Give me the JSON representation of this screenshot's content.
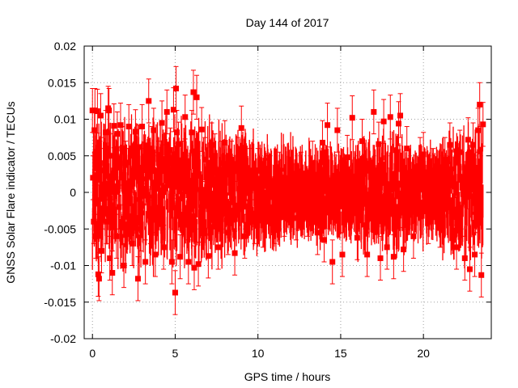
{
  "chart_data": {
    "type": "scatter",
    "title": "Day 144 of 2017",
    "xlabel": "GPS time / hours",
    "ylabel": "GNSS Solar Flare indicator / TECUs",
    "xlim": [
      -0.5,
      24.1
    ],
    "ylim": [
      -0.02,
      0.02
    ],
    "xticks": [
      0,
      5,
      10,
      15,
      20
    ],
    "xtick_labels": [
      "0",
      "5",
      "10",
      "15",
      "20"
    ],
    "yticks": [
      -0.02,
      -0.015,
      -0.01,
      -0.005,
      0,
      0.005,
      0.01,
      0.015,
      0.02
    ],
    "ytick_labels": [
      "-0.02",
      "-0.015",
      "-0.01",
      "-0.005",
      "0",
      "0.005",
      "0.01",
      "0.015",
      "0.02"
    ],
    "grid": true,
    "marker": "square",
    "errorbars": true,
    "color": "#ff0000",
    "series": [
      {
        "x": [
          0.0,
          0.03,
          0.08,
          0.12,
          0.15,
          0.2,
          0.3,
          0.35,
          0.4,
          0.45,
          0.5,
          0.55,
          0.7,
          0.8,
          0.85,
          0.95,
          1.0,
          1.05,
          1.1,
          1.2,
          1.25,
          1.3,
          1.45,
          1.5,
          1.6,
          1.7,
          1.8,
          1.9,
          2.0,
          2.2,
          2.4,
          2.5,
          2.6,
          2.75,
          2.8,
          2.9,
          3.0,
          3.2,
          3.4,
          3.5,
          3.6,
          3.7,
          3.8,
          4.0,
          4.2,
          4.3,
          4.5,
          4.7,
          4.8,
          4.9,
          5.0,
          5.05,
          5.1,
          5.2,
          5.3,
          5.45,
          5.6,
          5.8,
          6.0,
          6.1,
          6.15,
          6.3,
          6.4,
          6.6,
          6.8,
          7.0,
          7.2,
          7.4,
          7.6,
          7.8,
          8.0,
          8.2,
          8.4,
          8.6,
          8.8,
          9.0,
          9.2,
          9.5,
          9.8,
          10.0,
          10.3,
          10.6,
          11.0,
          11.3,
          11.6,
          12.0,
          12.3,
          12.6,
          13.0,
          13.3,
          13.6,
          13.9,
          14.0,
          14.2,
          14.5,
          14.8,
          15.1,
          15.4,
          15.7,
          16.0,
          16.3,
          16.6,
          17.0,
          17.3,
          17.4,
          17.6,
          17.8,
          18.0,
          18.2,
          18.5,
          18.6,
          18.8,
          19.0,
          19.4,
          19.8,
          20.0,
          20.3,
          20.6,
          21.0,
          21.3,
          21.6,
          22.0,
          22.2,
          22.5,
          22.7,
          22.8,
          23.0,
          23.1,
          23.3,
          23.4,
          23.5,
          23.6
        ],
        "y": [
          0.0112,
          0.002,
          -0.004,
          0.0085,
          0.0112,
          -0.006,
          0.0111,
          -0.0112,
          -0.0118,
          0.004,
          0.0105,
          -0.008,
          0.003,
          0.0082,
          -0.004,
          0.0115,
          0.0112,
          -0.009,
          0.005,
          -0.011,
          0.002,
          0.0091,
          -0.006,
          0.008,
          -0.002,
          0.0092,
          0.006,
          -0.01,
          0.004,
          0.009,
          -0.007,
          0.003,
          0.0083,
          -0.0118,
          0.0062,
          -0.005,
          0.009,
          -0.0095,
          0.0125,
          -0.004,
          0.006,
          0.0085,
          -0.0085,
          0.004,
          0.0095,
          -0.0075,
          0.011,
          0.0058,
          -0.0095,
          0.0113,
          -0.0137,
          0.0142,
          0.0082,
          0.0066,
          -0.0088,
          0.004,
          0.0103,
          -0.0095,
          0.0082,
          0.0137,
          -0.0103,
          0.013,
          -0.0098,
          0.0086,
          0.0045,
          -0.0087,
          0.0065,
          0.005,
          -0.0075,
          0.004,
          0.0068,
          -0.0055,
          0.004,
          -0.0083,
          0.0045,
          0.0088,
          -0.006,
          0.003,
          -0.004,
          0.003,
          -0.0045,
          0.002,
          -0.004,
          0.0025,
          -0.003,
          0.0015,
          -0.0035,
          0.0025,
          -0.003,
          0.004,
          -0.0055,
          0.0068,
          -0.0065,
          0.0092,
          -0.0095,
          0.0085,
          -0.0085,
          0.0048,
          0.0102,
          -0.0062,
          0.007,
          -0.0085,
          0.011,
          0.0066,
          -0.009,
          0.0097,
          -0.0075,
          0.0103,
          -0.0088,
          0.0094,
          0.0105,
          -0.0078,
          0.006,
          -0.006,
          0.0045,
          0.0052,
          -0.004,
          0.003,
          -0.0045,
          0.0045,
          0.0065,
          -0.0075,
          0.0055,
          -0.009,
          0.0072,
          -0.0105,
          0.0065,
          -0.0085,
          0.0085,
          0.012,
          -0.0113,
          0.0093
        ]
      }
    ]
  }
}
